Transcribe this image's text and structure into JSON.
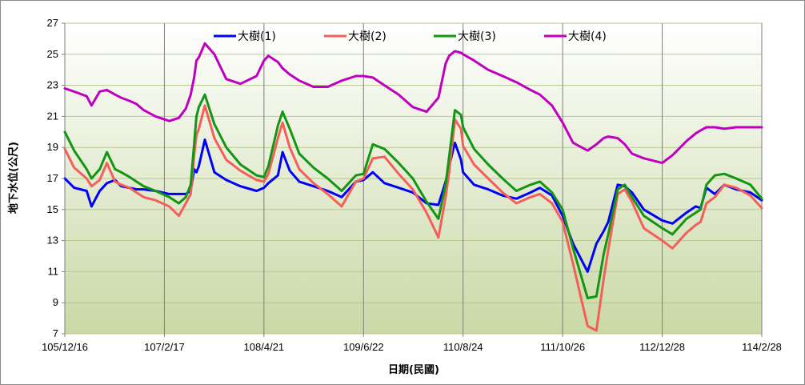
{
  "chart_data": {
    "type": "line",
    "title": "",
    "xlabel": "日期(民國)",
    "ylabel": "地下水位(公尺)",
    "ylim": [
      7,
      27
    ],
    "yticks": [
      7,
      9,
      11,
      13,
      15,
      17,
      19,
      21,
      23,
      25,
      27
    ],
    "xticks": [
      "105/12/16",
      "107/2/17",
      "108/4/21",
      "109/6/22",
      "110/8/24",
      "111/10/26",
      "112/12/28",
      "114/2/28"
    ],
    "x_grid_dates": [
      "105/12/16",
      "107/2/17",
      "108/4/21",
      "109/6/22",
      "110/8/24",
      "111/10/26",
      "112/12/28",
      "114/2/28"
    ],
    "grid": true,
    "legend_position": "top",
    "background": {
      "top": "#ffffff",
      "bottom": "#c9d9a6"
    },
    "series": [
      {
        "name": "大樹(1)",
        "color": "#0000ff",
        "x": [
          "105/12/16",
          "106/1/25",
          "106/3/20",
          "106/4/10",
          "106/5/15",
          "106/6/15",
          "106/7/20",
          "106/8/15",
          "106/9/20",
          "106/10/20",
          "106/11/20",
          "107/1/10",
          "107/3/10",
          "107/4/20",
          "107/5/20",
          "107/6/10",
          "107/6/25",
          "107/7/5",
          "107/7/15",
          "107/8/10",
          "107/9/20",
          "107/11/10",
          "108/1/10",
          "108/3/20",
          "108/4/21",
          "108/5/10",
          "108/6/20",
          "108/7/10",
          "108/8/10",
          "108/9/20",
          "108/11/20",
          "109/1/20",
          "109/3/20",
          "109/5/20",
          "109/6/22",
          "109/8/1",
          "109/9/20",
          "109/11/20",
          "110/1/20",
          "110/3/20",
          "110/5/10",
          "110/6/10",
          "110/6/25",
          "110/7/20",
          "110/8/15",
          "110/8/24",
          "110/10/10",
          "110/12/10",
          "111/2/10",
          "111/4/10",
          "111/6/10",
          "111/7/20",
          "111/9/10",
          "111/10/26",
          "111/12/10",
          "112/2/10",
          "112/3/20",
          "112/4/20",
          "112/5/10",
          "112/6/20",
          "112/7/20",
          "112/8/20",
          "112/10/10",
          "112/12/28",
          "113/2/10",
          "113/4/10",
          "113/5/20",
          "113/6/10",
          "113/7/5",
          "113/8/10",
          "113/9/20",
          "113/11/10",
          "114/1/10",
          "114/2/28"
        ],
        "y": [
          17.0,
          16.4,
          16.2,
          15.2,
          16.2,
          16.7,
          16.9,
          16.5,
          16.4,
          16.3,
          16.3,
          16.2,
          16.0,
          16.0,
          16.0,
          16.2,
          17.6,
          17.4,
          17.8,
          19.5,
          17.4,
          16.9,
          16.5,
          16.2,
          16.4,
          16.7,
          17.2,
          18.7,
          17.5,
          16.8,
          16.5,
          16.2,
          15.8,
          16.8,
          16.9,
          17.4,
          16.7,
          16.4,
          16.1,
          15.4,
          15.3,
          16.8,
          17.8,
          19.3,
          18.2,
          17.4,
          16.6,
          16.3,
          15.9,
          15.7,
          16.1,
          16.4,
          15.9,
          14.6,
          12.8,
          11.0,
          12.8,
          13.6,
          14.2,
          16.6,
          16.5,
          16.1,
          15.0,
          14.3,
          14.1,
          14.8,
          15.2,
          15.1,
          16.4,
          16.0,
          16.6,
          16.3,
          16.1,
          15.6
        ]
      },
      {
        "name": "大樹(2)",
        "color": "#f55f5a",
        "x": [
          "105/12/16",
          "106/1/25",
          "106/3/20",
          "106/4/10",
          "106/5/15",
          "106/6/15",
          "106/7/20",
          "106/8/15",
          "106/9/20",
          "106/10/20",
          "106/11/20",
          "107/1/10",
          "107/3/10",
          "107/4/20",
          "107/5/20",
          "107/6/10",
          "107/6/25",
          "107/7/5",
          "107/7/15",
          "107/8/10",
          "107/9/20",
          "107/11/10",
          "108/1/10",
          "108/3/20",
          "108/4/21",
          "108/5/10",
          "108/6/20",
          "108/7/10",
          "108/8/10",
          "108/9/20",
          "108/11/20",
          "109/1/20",
          "109/3/20",
          "109/5/20",
          "109/6/22",
          "109/8/1",
          "109/9/20",
          "109/11/20",
          "110/1/20",
          "110/3/20",
          "110/5/10",
          "110/6/10",
          "110/6/25",
          "110/7/20",
          "110/8/15",
          "110/8/24",
          "110/10/10",
          "110/12/10",
          "111/2/10",
          "111/4/10",
          "111/6/10",
          "111/7/20",
          "111/9/10",
          "111/10/26",
          "111/12/10",
          "112/2/10",
          "112/3/20",
          "112/4/20",
          "112/5/10",
          "112/6/20",
          "112/7/20",
          "112/8/20",
          "112/10/10",
          "112/12/28",
          "113/2/10",
          "113/4/10",
          "113/5/20",
          "113/6/10",
          "113/7/5",
          "113/8/10",
          "113/9/20",
          "113/11/10",
          "114/1/10",
          "114/2/28"
        ],
        "y": [
          18.9,
          17.7,
          17.0,
          16.5,
          16.9,
          18.0,
          16.8,
          16.6,
          16.4,
          16.1,
          15.8,
          15.6,
          15.2,
          14.6,
          15.4,
          16.0,
          18.5,
          19.8,
          20.2,
          21.7,
          19.6,
          18.2,
          17.5,
          16.9,
          16.8,
          17.3,
          19.6,
          20.6,
          19.0,
          17.6,
          16.7,
          16.0,
          15.2,
          16.8,
          17.0,
          18.3,
          18.4,
          17.3,
          16.3,
          14.8,
          13.2,
          15.8,
          17.4,
          20.8,
          20.2,
          19.1,
          17.9,
          17.0,
          16.1,
          15.4,
          15.8,
          16.0,
          15.4,
          14.2,
          11.5,
          7.5,
          7.2,
          10.5,
          12.4,
          16.0,
          16.3,
          15.5,
          13.8,
          13.0,
          12.5,
          13.5,
          14.0,
          14.2,
          15.4,
          15.8,
          16.6,
          16.4,
          15.9,
          15.1
        ]
      },
      {
        "name": "大樹(3)",
        "color": "#139613",
        "x": [
          "105/12/16",
          "106/1/25",
          "106/3/20",
          "106/4/10",
          "106/5/15",
          "106/6/15",
          "106/7/20",
          "106/8/15",
          "106/9/20",
          "106/10/20",
          "106/11/20",
          "107/1/10",
          "107/3/10",
          "107/4/20",
          "107/5/20",
          "107/6/10",
          "107/6/25",
          "107/7/5",
          "107/7/15",
          "107/8/10",
          "107/9/20",
          "107/11/10",
          "108/1/10",
          "108/3/20",
          "108/4/21",
          "108/5/10",
          "108/6/20",
          "108/7/10",
          "108/8/10",
          "108/9/20",
          "108/11/20",
          "109/1/20",
          "109/3/20",
          "109/5/20",
          "109/6/22",
          "109/8/1",
          "109/9/20",
          "109/11/20",
          "110/1/20",
          "110/3/20",
          "110/5/10",
          "110/6/10",
          "110/6/25",
          "110/7/20",
          "110/8/15",
          "110/8/24",
          "110/10/10",
          "110/12/10",
          "111/2/10",
          "111/4/10",
          "111/6/10",
          "111/7/20",
          "111/9/10",
          "111/10/26",
          "111/12/10",
          "112/2/10",
          "112/3/20",
          "112/4/20",
          "112/5/10",
          "112/6/20",
          "112/7/20",
          "112/8/20",
          "112/10/10",
          "112/12/28",
          "113/2/10",
          "113/4/10",
          "113/5/20",
          "113/6/10",
          "113/7/5",
          "113/8/10",
          "113/9/20",
          "113/11/10",
          "114/1/10",
          "114/2/28"
        ],
        "y": [
          20.0,
          18.8,
          17.6,
          17.0,
          17.6,
          18.7,
          17.6,
          17.4,
          17.1,
          16.8,
          16.5,
          16.2,
          15.8,
          15.4,
          15.8,
          16.6,
          19.2,
          21.0,
          21.6,
          22.4,
          20.5,
          19.0,
          17.9,
          17.2,
          17.1,
          17.8,
          20.4,
          21.3,
          20.2,
          18.6,
          17.7,
          17.0,
          16.2,
          17.2,
          17.3,
          19.2,
          18.9,
          18.0,
          17.0,
          15.5,
          14.4,
          16.6,
          18.4,
          21.4,
          21.1,
          20.3,
          18.9,
          17.9,
          17.0,
          16.2,
          16.6,
          16.8,
          16.1,
          15.0,
          12.5,
          9.3,
          9.4,
          12.1,
          13.4,
          16.3,
          16.6,
          15.8,
          14.6,
          13.8,
          13.4,
          14.4,
          14.8,
          15.0,
          16.6,
          17.2,
          17.3,
          17.0,
          16.6,
          15.7
        ]
      },
      {
        "name": "大樹(4)",
        "color": "#c000c0",
        "x": [
          "105/12/16",
          "106/1/25",
          "106/3/20",
          "106/4/10",
          "106/5/15",
          "106/6/15",
          "106/7/20",
          "106/8/15",
          "106/9/20",
          "106/10/20",
          "106/11/20",
          "107/1/10",
          "107/3/10",
          "107/4/20",
          "107/5/20",
          "107/6/10",
          "107/6/25",
          "107/7/5",
          "107/7/15",
          "107/8/10",
          "107/9/20",
          "107/11/10",
          "108/1/10",
          "108/3/20",
          "108/4/21",
          "108/5/10",
          "108/6/20",
          "108/7/10",
          "108/8/10",
          "108/9/20",
          "108/11/20",
          "109/1/20",
          "109/3/20",
          "109/5/20",
          "109/6/22",
          "109/8/1",
          "109/9/20",
          "109/11/20",
          "110/1/20",
          "110/3/20",
          "110/5/10",
          "110/6/10",
          "110/6/25",
          "110/7/20",
          "110/8/15",
          "110/8/24",
          "110/10/10",
          "110/12/10",
          "111/2/10",
          "111/4/10",
          "111/6/10",
          "111/7/20",
          "111/9/10",
          "111/10/26",
          "111/12/10",
          "112/2/10",
          "112/3/20",
          "112/4/20",
          "112/5/10",
          "112/6/20",
          "112/7/20",
          "112/8/20",
          "112/10/10",
          "112/12/28",
          "113/2/10",
          "113/4/10",
          "113/5/20",
          "113/6/10",
          "113/7/5",
          "113/8/10",
          "113/9/20",
          "113/11/10",
          "114/1/10",
          "114/2/28"
        ],
        "y": [
          22.8,
          22.6,
          22.3,
          21.7,
          22.6,
          22.7,
          22.4,
          22.2,
          22.0,
          21.8,
          21.4,
          21.0,
          20.7,
          20.9,
          21.5,
          22.4,
          23.5,
          24.6,
          24.8,
          25.7,
          25.0,
          23.4,
          23.1,
          23.6,
          24.6,
          24.9,
          24.5,
          24.1,
          23.7,
          23.3,
          22.9,
          22.9,
          23.3,
          23.6,
          23.6,
          23.5,
          23.0,
          22.4,
          21.6,
          21.3,
          22.2,
          24.4,
          24.9,
          25.2,
          25.1,
          25.0,
          24.6,
          24.0,
          23.6,
          23.2,
          22.7,
          22.4,
          21.7,
          20.6,
          19.3,
          18.8,
          19.2,
          19.6,
          19.7,
          19.6,
          19.2,
          18.6,
          18.3,
          18.0,
          18.5,
          19.4,
          19.9,
          20.1,
          20.3,
          20.3,
          20.2,
          20.3,
          20.3,
          20.3
        ]
      }
    ]
  }
}
